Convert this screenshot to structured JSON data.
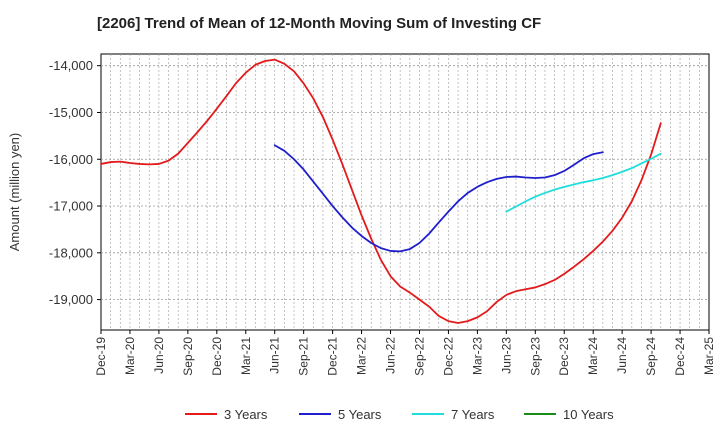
{
  "chart_data": {
    "type": "line",
    "title": "[2206]  Trend of Mean of 12-Month Moving Sum of Investing CF",
    "xlabel": "",
    "ylabel": "Amount (million yen)",
    "ylim": [
      -19650,
      -13750
    ],
    "yticks": [
      -14000,
      -15000,
      -16000,
      -17000,
      -18000,
      -19000
    ],
    "ytick_labels": [
      "-14,000",
      "-15,000",
      "-16,000",
      "-17,000",
      "-18,000",
      "-19,000"
    ],
    "x_start": "Dec-19",
    "xticks": [
      {
        "label": "Dec-19",
        "month": 0
      },
      {
        "label": "Mar-20",
        "month": 3
      },
      {
        "label": "Jun-20",
        "month": 6
      },
      {
        "label": "Sep-20",
        "month": 9
      },
      {
        "label": "Dec-20",
        "month": 12
      },
      {
        "label": "Mar-21",
        "month": 15
      },
      {
        "label": "Jun-21",
        "month": 18
      },
      {
        "label": "Sep-21",
        "month": 21
      },
      {
        "label": "Dec-21",
        "month": 24
      },
      {
        "label": "Mar-22",
        "month": 27
      },
      {
        "label": "Jun-22",
        "month": 30
      },
      {
        "label": "Sep-22",
        "month": 33
      },
      {
        "label": "Dec-22",
        "month": 36
      },
      {
        "label": "Mar-23",
        "month": 39
      },
      {
        "label": "Jun-23",
        "month": 42
      },
      {
        "label": "Sep-23",
        "month": 45
      },
      {
        "label": "Dec-23",
        "month": 48
      },
      {
        "label": "Mar-24",
        "month": 51
      },
      {
        "label": "Jun-24",
        "month": 54
      },
      {
        "label": "Sep-24",
        "month": 57
      },
      {
        "label": "Dec-24",
        "month": 60
      },
      {
        "label": "Mar-25",
        "month": 63
      }
    ],
    "xlim": [
      0,
      63
    ],
    "series": [
      {
        "name": "3 Years",
        "color": "#e31a1c",
        "points": [
          [
            0,
            -16100
          ],
          [
            1,
            -16060
          ],
          [
            2,
            -16050
          ],
          [
            3,
            -16080
          ],
          [
            4,
            -16100
          ],
          [
            5,
            -16110
          ],
          [
            6,
            -16100
          ],
          [
            7,
            -16030
          ],
          [
            8,
            -15880
          ],
          [
            9,
            -15650
          ],
          [
            10,
            -15420
          ],
          [
            11,
            -15180
          ],
          [
            12,
            -14920
          ],
          [
            13,
            -14650
          ],
          [
            14,
            -14370
          ],
          [
            15,
            -14150
          ],
          [
            16,
            -13980
          ],
          [
            17,
            -13900
          ],
          [
            18,
            -13870
          ],
          [
            19,
            -13960
          ],
          [
            20,
            -14120
          ],
          [
            21,
            -14380
          ],
          [
            22,
            -14700
          ],
          [
            23,
            -15100
          ],
          [
            24,
            -15580
          ],
          [
            25,
            -16100
          ],
          [
            26,
            -16650
          ],
          [
            27,
            -17200
          ],
          [
            28,
            -17700
          ],
          [
            29,
            -18150
          ],
          [
            30,
            -18500
          ],
          [
            31,
            -18720
          ],
          [
            32,
            -18850
          ],
          [
            33,
            -19000
          ],
          [
            34,
            -19150
          ],
          [
            35,
            -19350
          ],
          [
            36,
            -19460
          ],
          [
            37,
            -19500
          ],
          [
            38,
            -19460
          ],
          [
            39,
            -19380
          ],
          [
            40,
            -19250
          ],
          [
            41,
            -19050
          ],
          [
            42,
            -18900
          ],
          [
            43,
            -18820
          ],
          [
            44,
            -18780
          ],
          [
            45,
            -18740
          ],
          [
            46,
            -18670
          ],
          [
            47,
            -18580
          ],
          [
            48,
            -18450
          ],
          [
            49,
            -18300
          ],
          [
            50,
            -18140
          ],
          [
            51,
            -17960
          ],
          [
            52,
            -17760
          ],
          [
            53,
            -17530
          ],
          [
            54,
            -17250
          ],
          [
            55,
            -16900
          ],
          [
            56,
            -16450
          ],
          [
            57,
            -15900
          ],
          [
            58,
            -15230
          ]
        ]
      },
      {
        "name": "5 Years",
        "color": "#1f1fcc",
        "points": [
          [
            18,
            -15700
          ],
          [
            19,
            -15820
          ],
          [
            20,
            -16000
          ],
          [
            21,
            -16220
          ],
          [
            22,
            -16480
          ],
          [
            23,
            -16740
          ],
          [
            24,
            -17000
          ],
          [
            25,
            -17240
          ],
          [
            26,
            -17460
          ],
          [
            27,
            -17640
          ],
          [
            28,
            -17790
          ],
          [
            29,
            -17900
          ],
          [
            30,
            -17960
          ],
          [
            31,
            -17970
          ],
          [
            32,
            -17920
          ],
          [
            33,
            -17790
          ],
          [
            34,
            -17590
          ],
          [
            35,
            -17350
          ],
          [
            36,
            -17120
          ],
          [
            37,
            -16900
          ],
          [
            38,
            -16720
          ],
          [
            39,
            -16590
          ],
          [
            40,
            -16490
          ],
          [
            41,
            -16420
          ],
          [
            42,
            -16380
          ],
          [
            43,
            -16370
          ],
          [
            44,
            -16390
          ],
          [
            45,
            -16400
          ],
          [
            46,
            -16390
          ],
          [
            47,
            -16340
          ],
          [
            48,
            -16250
          ],
          [
            49,
            -16120
          ],
          [
            50,
            -15980
          ],
          [
            51,
            -15890
          ],
          [
            52,
            -15850
          ]
        ]
      },
      {
        "name": "7 Years",
        "color": "#22dddd",
        "points": [
          [
            42,
            -17120
          ],
          [
            43,
            -17010
          ],
          [
            44,
            -16900
          ],
          [
            45,
            -16800
          ],
          [
            46,
            -16720
          ],
          [
            47,
            -16650
          ],
          [
            48,
            -16590
          ],
          [
            49,
            -16540
          ],
          [
            50,
            -16490
          ],
          [
            51,
            -16450
          ],
          [
            52,
            -16400
          ],
          [
            53,
            -16340
          ],
          [
            54,
            -16270
          ],
          [
            55,
            -16190
          ],
          [
            56,
            -16090
          ],
          [
            57,
            -15990
          ],
          [
            58,
            -15880
          ]
        ]
      },
      {
        "name": "10 Years",
        "color": "#1a8a1a",
        "points": []
      }
    ],
    "grid": true,
    "legend_position": "bottom"
  }
}
